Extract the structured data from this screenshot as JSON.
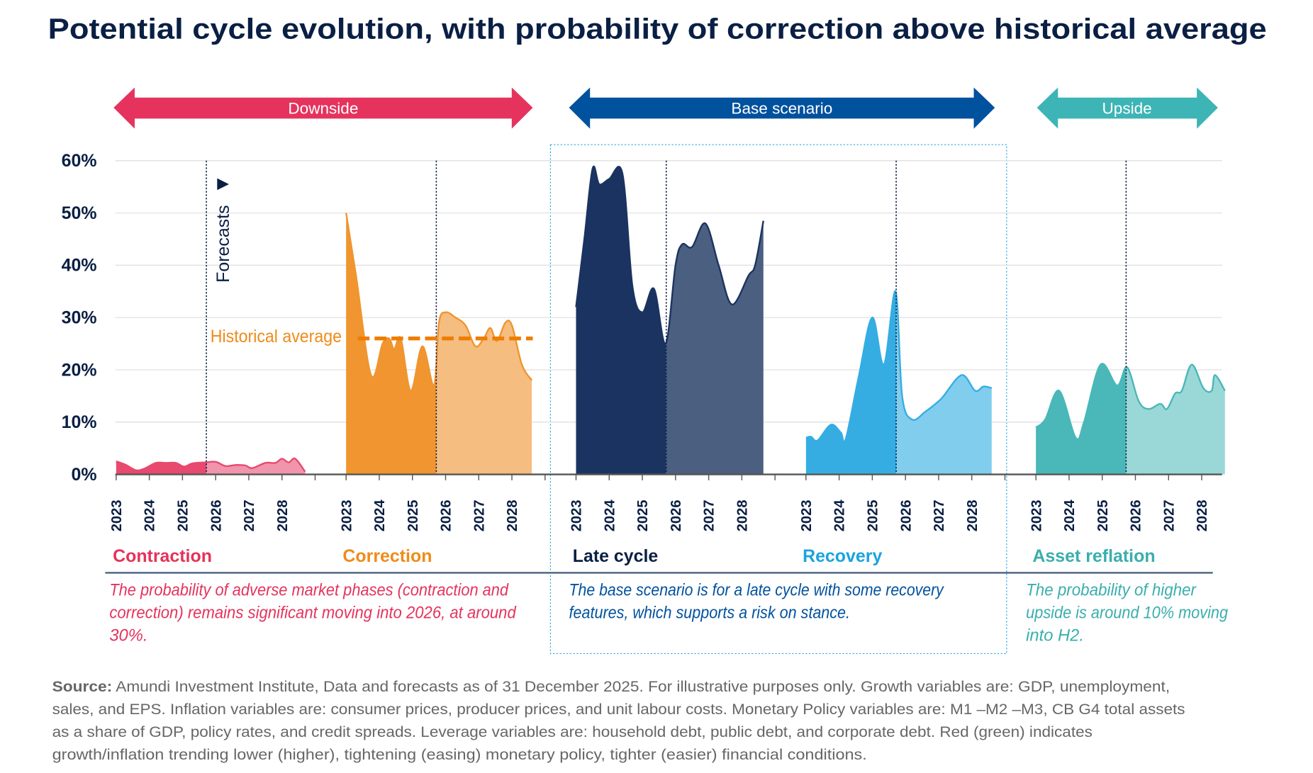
{
  "title": "Potential cycle evolution, with probability of correction above historical average",
  "scenarios": [
    {
      "label": "Downside",
      "color": "#e5335d"
    },
    {
      "label": "Base scenario",
      "color": "#00519e"
    },
    {
      "label": "Upside",
      "color": "#3db4b5"
    }
  ],
  "forecasts_label": "Forecasts",
  "historical_average_label": "Historical average",
  "notes": {
    "downside": [
      "The probability of adverse market phases (contraction and",
      "correction) remains significant moving into 2026, at around",
      "30%."
    ],
    "base": [
      "The base scenario is for a late cycle with some recovery",
      "features, which supports a risk on stance."
    ],
    "upside": [
      "The probability of higher",
      "upside is around 10% moving",
      "into H2."
    ]
  },
  "source": {
    "label": "Source:",
    "lines": [
      " Amundi Investment Institute, Data and forecasts as of 31 December 2025. For illustrative purposes only. Growth variables are: GDP, unemployment,",
      "sales, and EPS. Inflation variables are: consumer prices, producer prices, and unit labour costs. Monetary Policy variables  are: M1 –M2 –M3, CB G4 total assets",
      "as a share of GDP, policy rates, and credit spreads. Leverage variables are: household debt, public debt, and corporate debt. Red (green) indicates",
      "growth/inflation trending lower (higher), tightening (easing) monetary policy, tighter (easier) financial conditions."
    ]
  },
  "chart_data": {
    "type": "area",
    "title": "Potential cycle evolution, with probability of correction above historical average",
    "ylabel": "",
    "ylim": [
      0,
      60
    ],
    "yticks": [
      "0%",
      "10%",
      "20%",
      "30%",
      "40%",
      "50%",
      "60%"
    ],
    "yticks_values": [
      0,
      10,
      20,
      30,
      40,
      50,
      60
    ],
    "xticks": [
      "2023",
      "2024",
      "2025",
      "2026",
      "2027",
      "2028"
    ],
    "grid": true,
    "forecast_start": 2025.72,
    "historical_average": 26,
    "series": [
      {
        "name": "Contraction",
        "color": "#e8496e",
        "forecast_color": "#f095ab",
        "label_color": "#e5325b",
        "points": [
          [
            2023,
            2.5
          ],
          [
            2023.3,
            1.8
          ],
          [
            2023.6,
            0.8
          ],
          [
            2023.85,
            1.1
          ],
          [
            2024.2,
            2.2
          ],
          [
            2024.5,
            2.2
          ],
          [
            2024.8,
            2.2
          ],
          [
            2025.05,
            1.5
          ],
          [
            2025.3,
            2.1
          ],
          [
            2025.7,
            2.3
          ],
          [
            2026,
            2.4
          ],
          [
            2026.3,
            1.6
          ],
          [
            2026.6,
            1.8
          ],
          [
            2026.9,
            1.7
          ],
          [
            2027.1,
            1.2
          ],
          [
            2027.5,
            2.2
          ],
          [
            2027.8,
            2.2
          ],
          [
            2028,
            3.0
          ],
          [
            2028.2,
            2.3
          ],
          [
            2028.4,
            3.0
          ],
          [
            2028.7,
            0.5
          ]
        ]
      },
      {
        "name": "Correction",
        "color": "#f0952f",
        "forecast_color": "#f5bd80",
        "label_color": "#ef8b1a",
        "points": [
          [
            2023,
            50
          ],
          [
            2023.3,
            38
          ],
          [
            2023.75,
            19
          ],
          [
            2024.1,
            25
          ],
          [
            2024.3,
            26
          ],
          [
            2024.45,
            24
          ],
          [
            2024.65,
            26
          ],
          [
            2024.95,
            16
          ],
          [
            2025.3,
            24.5
          ],
          [
            2025.65,
            17
          ],
          [
            2025.8,
            29
          ],
          [
            2026,
            31
          ],
          [
            2026.3,
            30
          ],
          [
            2026.6,
            28.5
          ],
          [
            2026.9,
            24.5
          ],
          [
            2027.15,
            26
          ],
          [
            2027.35,
            28
          ],
          [
            2027.55,
            25.5
          ],
          [
            2027.8,
            29
          ],
          [
            2028.0,
            28.5
          ],
          [
            2028.3,
            21
          ],
          [
            2028.6,
            18
          ]
        ]
      },
      {
        "name": "Late cycle",
        "color": "#1b3360",
        "forecast_color": "#4b6080",
        "label_color": "#0a1f44",
        "points": [
          [
            2023,
            32
          ],
          [
            2023.25,
            45
          ],
          [
            2023.5,
            58.5
          ],
          [
            2023.7,
            55.5
          ],
          [
            2024.0,
            56.5
          ],
          [
            2024.4,
            57.5
          ],
          [
            2024.7,
            36
          ],
          [
            2025.0,
            31
          ],
          [
            2025.35,
            35.5
          ],
          [
            2025.7,
            25
          ],
          [
            2026.0,
            40
          ],
          [
            2026.2,
            44
          ],
          [
            2026.5,
            43.5
          ],
          [
            2026.9,
            48
          ],
          [
            2027.3,
            40
          ],
          [
            2027.7,
            32.5
          ],
          [
            2028.2,
            38
          ],
          [
            2028.4,
            40
          ],
          [
            2028.65,
            48.5
          ]
        ]
      },
      {
        "name": "Recovery",
        "color": "#35ade3",
        "forecast_color": "#80cdee",
        "label_color": "#1aa3e0",
        "points": [
          [
            2023,
            7
          ],
          [
            2023.15,
            7.2
          ],
          [
            2023.35,
            6.5
          ],
          [
            2023.75,
            9.5
          ],
          [
            2024.05,
            8
          ],
          [
            2024.2,
            6.8
          ],
          [
            2024.6,
            19
          ],
          [
            2025.0,
            30
          ],
          [
            2025.35,
            21
          ],
          [
            2025.7,
            35
          ],
          [
            2025.9,
            15
          ],
          [
            2026.2,
            10.5
          ],
          [
            2026.6,
            12
          ],
          [
            2027.0,
            14
          ],
          [
            2027.15,
            15
          ],
          [
            2027.7,
            19
          ],
          [
            2028.1,
            16
          ],
          [
            2028.35,
            16.8
          ],
          [
            2028.6,
            16.5
          ]
        ]
      },
      {
        "name": "Asset reflation",
        "color": "#4ab7b8",
        "forecast_color": "#9ad8d8",
        "label_color": "#3aaead",
        "points": [
          [
            2023,
            9
          ],
          [
            2023.28,
            10.5
          ],
          [
            2023.7,
            16
          ],
          [
            2024.2,
            7
          ],
          [
            2024.45,
            10
          ],
          [
            2024.95,
            21
          ],
          [
            2025.45,
            17
          ],
          [
            2025.75,
            20.5
          ],
          [
            2026.1,
            14
          ],
          [
            2026.4,
            12.5
          ],
          [
            2026.75,
            13.5
          ],
          [
            2026.95,
            12.5
          ],
          [
            2027.2,
            15.5
          ],
          [
            2027.4,
            16
          ],
          [
            2027.7,
            21
          ],
          [
            2028.05,
            16.5
          ],
          [
            2028.3,
            16
          ],
          [
            2028.4,
            19
          ],
          [
            2028.7,
            16
          ]
        ]
      }
    ]
  }
}
